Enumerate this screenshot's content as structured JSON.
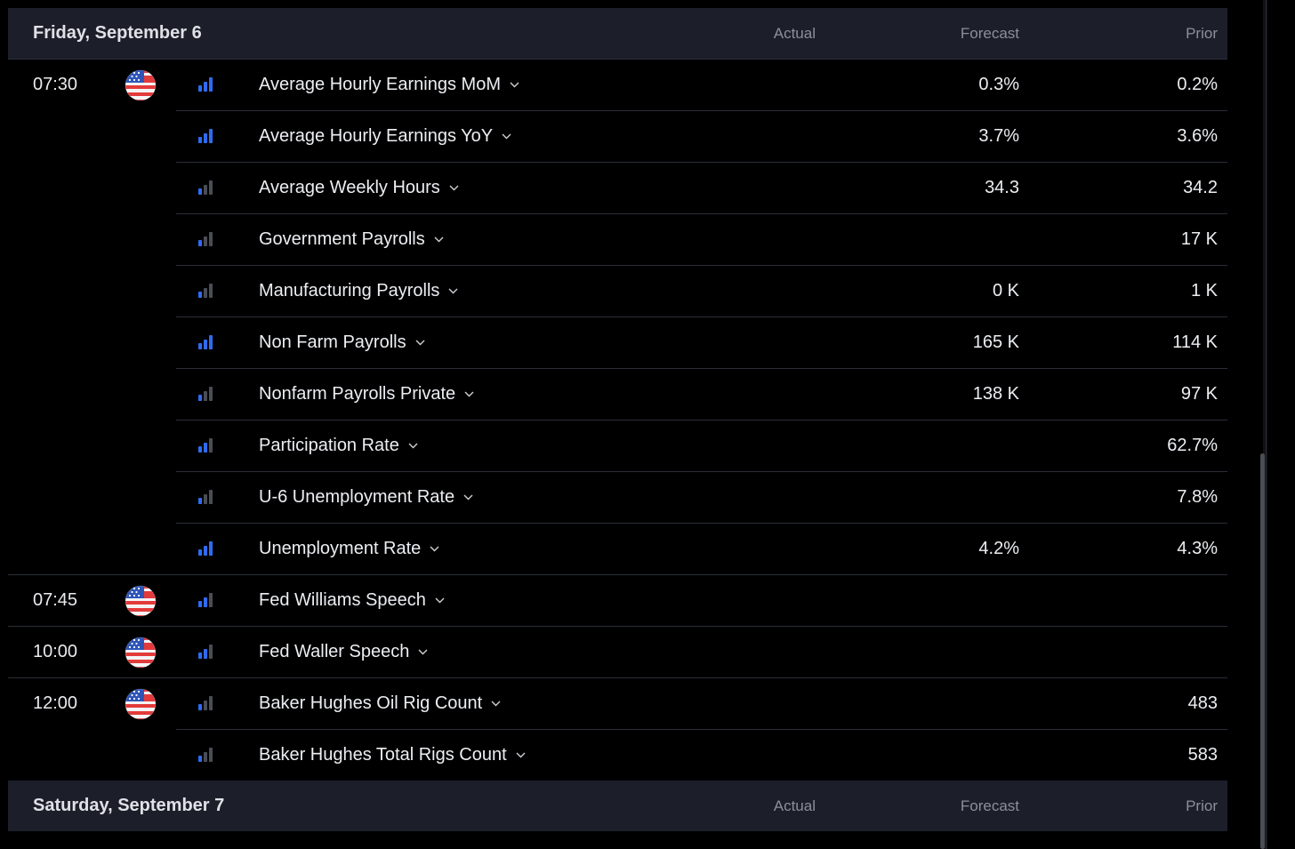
{
  "days": [
    {
      "title": "Friday, September 6",
      "columns": {
        "actual": "Actual",
        "forecast": "Forecast",
        "prior": "Prior"
      }
    },
    {
      "title": "Saturday, September 7",
      "columns": {
        "actual": "Actual",
        "forecast": "Forecast",
        "prior": "Prior"
      }
    }
  ],
  "colors": {
    "importance_active": "#2f6bf2",
    "importance_inactive": "#4a4d55",
    "header_bg": "#1c1f2a"
  },
  "groups": [
    {
      "time": "07:30",
      "country_icon": "us-flag-icon",
      "events": [
        {
          "name": "Average Hourly Earnings MoM",
          "forecast": "0.3%",
          "prior": "0.2%",
          "importance": 3
        },
        {
          "name": "Average Hourly Earnings YoY",
          "forecast": "3.7%",
          "prior": "3.6%",
          "importance": 3
        },
        {
          "name": "Average Weekly Hours",
          "forecast": "34.3",
          "prior": "34.2",
          "importance": 1
        },
        {
          "name": "Government Payrolls",
          "forecast": "",
          "prior": "17 K",
          "importance": 1
        },
        {
          "name": "Manufacturing Payrolls",
          "forecast": "0 K",
          "prior": "1 K",
          "importance": 1
        },
        {
          "name": "Non Farm Payrolls",
          "forecast": "165 K",
          "prior": "114 K",
          "importance": 3
        },
        {
          "name": "Nonfarm Payrolls Private",
          "forecast": "138 K",
          "prior": "97 K",
          "importance": 1
        },
        {
          "name": "Participation Rate",
          "forecast": "",
          "prior": "62.7%",
          "importance": 2
        },
        {
          "name": "U-6 Unemployment Rate",
          "forecast": "",
          "prior": "7.8%",
          "importance": 1
        },
        {
          "name": "Unemployment Rate",
          "forecast": "4.2%",
          "prior": "4.3%",
          "importance": 3
        }
      ]
    },
    {
      "time": "07:45",
      "country_icon": "us-flag-icon",
      "events": [
        {
          "name": "Fed Williams Speech",
          "forecast": "",
          "prior": "",
          "importance": 2
        }
      ]
    },
    {
      "time": "10:00",
      "country_icon": "us-flag-icon",
      "events": [
        {
          "name": "Fed Waller Speech",
          "forecast": "",
          "prior": "",
          "importance": 2
        }
      ]
    },
    {
      "time": "12:00",
      "country_icon": "us-flag-icon",
      "events": [
        {
          "name": "Baker Hughes Oil Rig Count",
          "forecast": "",
          "prior": "483",
          "importance": 1
        },
        {
          "name": "Baker Hughes Total Rigs Count",
          "forecast": "",
          "prior": "583",
          "importance": 1
        }
      ]
    }
  ]
}
